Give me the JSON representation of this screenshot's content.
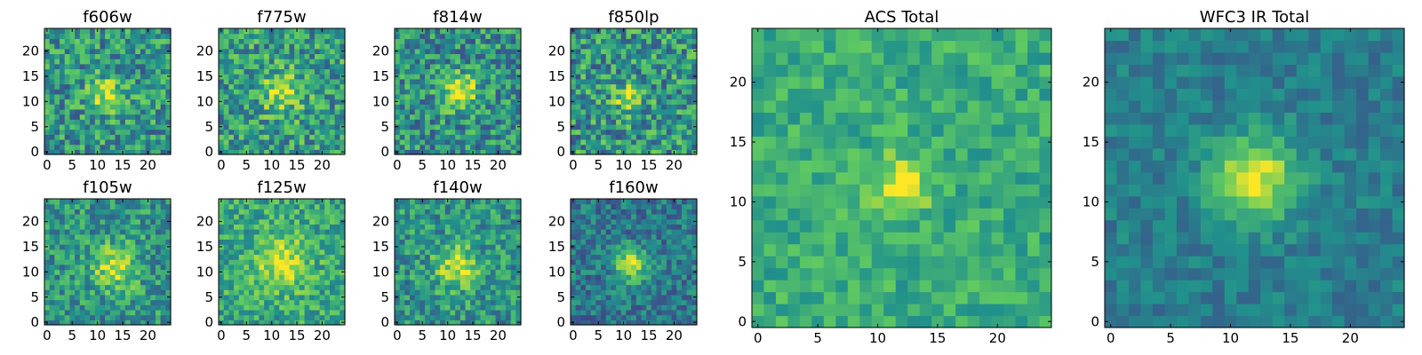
{
  "colormap": [
    "#440154",
    "#3b528b",
    "#21918c",
    "#5ec962",
    "#fde725"
  ],
  "chart_data": [
    {
      "type": "heatmap",
      "title": "f606w",
      "xticks": [
        "0",
        "5",
        "10",
        "15",
        "20"
      ],
      "yticks": [
        "0",
        "5",
        "10",
        "15",
        "20"
      ],
      "xlim": [
        0,
        25
      ],
      "ylim": [
        0,
        25
      ],
      "grid": false,
      "source": {
        "cx": 12,
        "cy": 11.5,
        "sigma": 2.6,
        "amp": 0.35
      },
      "noise": 0.26,
      "background": 0.52,
      "seed": 11
    },
    {
      "type": "heatmap",
      "title": "f775w",
      "xticks": [
        "0",
        "5",
        "10",
        "15",
        "20"
      ],
      "yticks": [
        "0",
        "5",
        "10",
        "15",
        "20"
      ],
      "xlim": [
        0,
        25
      ],
      "ylim": [
        0,
        25
      ],
      "grid": false,
      "source": {
        "cx": 12,
        "cy": 12,
        "sigma": 2.8,
        "amp": 0.35
      },
      "noise": 0.26,
      "background": 0.55,
      "seed": 23
    },
    {
      "type": "heatmap",
      "title": "f814w",
      "xticks": [
        "0",
        "5",
        "10",
        "15",
        "20"
      ],
      "yticks": [
        "0",
        "5",
        "10",
        "15",
        "20"
      ],
      "xlim": [
        0,
        25
      ],
      "ylim": [
        0,
        25
      ],
      "grid": false,
      "source": {
        "cx": 12.5,
        "cy": 12,
        "sigma": 2.4,
        "amp": 0.5
      },
      "noise": 0.26,
      "background": 0.5,
      "seed": 37
    },
    {
      "type": "heatmap",
      "title": "f850lp",
      "xticks": [
        "0",
        "5",
        "10",
        "15",
        "20"
      ],
      "yticks": [
        "0",
        "5",
        "10",
        "15",
        "20"
      ],
      "xlim": [
        0,
        25
      ],
      "ylim": [
        0,
        25
      ],
      "grid": false,
      "source": {
        "cx": 11,
        "cy": 11,
        "sigma": 2.0,
        "amp": 0.35
      },
      "noise": 0.28,
      "background": 0.52,
      "seed": 41
    },
    {
      "type": "heatmap",
      "title": "f105w",
      "xticks": [
        "0",
        "5",
        "10",
        "15",
        "20"
      ],
      "yticks": [
        "0",
        "5",
        "10",
        "15",
        "20"
      ],
      "xlim": [
        0,
        25
      ],
      "ylim": [
        0,
        25
      ],
      "grid": false,
      "source": {
        "cx": 13.5,
        "cy": 11,
        "sigma": 3.0,
        "amp": 0.4
      },
      "noise": 0.22,
      "background": 0.52,
      "seed": 53
    },
    {
      "type": "heatmap",
      "title": "f125w",
      "xticks": [
        "0",
        "5",
        "10",
        "15",
        "20"
      ],
      "yticks": [
        "0",
        "5",
        "10",
        "15",
        "20"
      ],
      "xlim": [
        0,
        25
      ],
      "ylim": [
        0,
        25
      ],
      "grid": false,
      "source": {
        "cx": 12,
        "cy": 12,
        "sigma": 3.6,
        "amp": 0.35
      },
      "noise": 0.2,
      "background": 0.6,
      "seed": 67
    },
    {
      "type": "heatmap",
      "title": "f140w",
      "xticks": [
        "0",
        "5",
        "10",
        "15",
        "20"
      ],
      "yticks": [
        "0",
        "5",
        "10",
        "15",
        "20"
      ],
      "xlim": [
        0,
        25
      ],
      "ylim": [
        0,
        25
      ],
      "grid": false,
      "source": {
        "cx": 12,
        "cy": 11,
        "sigma": 3.0,
        "amp": 0.4
      },
      "noise": 0.22,
      "background": 0.52,
      "seed": 79
    },
    {
      "type": "heatmap",
      "title": "f160w",
      "xticks": [
        "0",
        "5",
        "10",
        "15",
        "20"
      ],
      "yticks": [
        "0",
        "5",
        "10",
        "15",
        "20"
      ],
      "xlim": [
        0,
        25
      ],
      "ylim": [
        0,
        25
      ],
      "grid": false,
      "source": {
        "cx": 11.5,
        "cy": 11.5,
        "sigma": 2.2,
        "amp": 0.55
      },
      "noise": 0.18,
      "background": 0.4,
      "seed": 97
    },
    {
      "type": "heatmap",
      "title": "ACS Total",
      "xticks": [
        "0",
        "5",
        "10",
        "15",
        "20"
      ],
      "yticks": [
        "0",
        "5",
        "10",
        "15",
        "20"
      ],
      "xlim": [
        0,
        25
      ],
      "ylim": [
        0,
        25
      ],
      "grid": false,
      "source": {
        "cx": 12,
        "cy": 11.5,
        "sigma": 1.6,
        "amp": 0.4
      },
      "noise": 0.14,
      "background": 0.62,
      "seed": 101
    },
    {
      "type": "heatmap",
      "title": "WFC3 IR Total",
      "xticks": [
        "0",
        "5",
        "10",
        "15",
        "20"
      ],
      "yticks": [
        "0",
        "5",
        "10",
        "15",
        "20"
      ],
      "xlim": [
        0,
        25
      ],
      "ylim": [
        0,
        25
      ],
      "grid": false,
      "source": {
        "cx": 12,
        "cy": 12,
        "sigma": 2.5,
        "amp": 0.55
      },
      "noise": 0.11,
      "background": 0.42,
      "seed": 131
    }
  ]
}
